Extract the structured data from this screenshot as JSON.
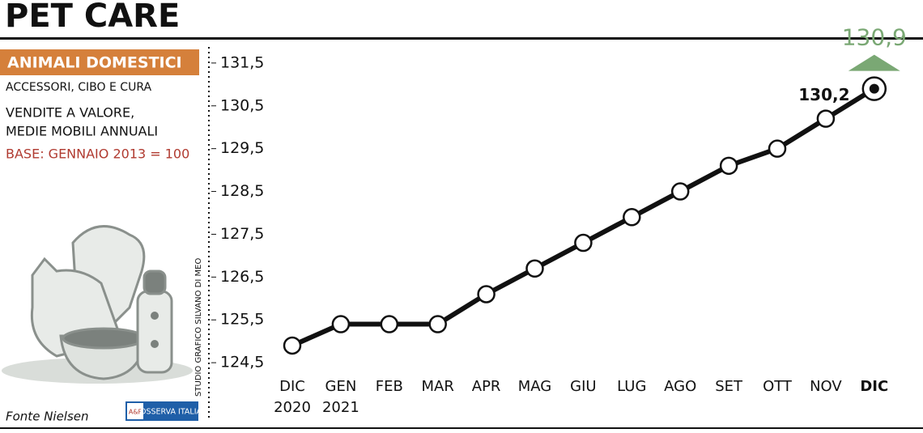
{
  "header": {
    "title": "PET CARE"
  },
  "panel": {
    "tag": "ANIMALI DOMESTICI",
    "subtitle": "ACCESSORI, CIBO E CURA",
    "measure_lines": [
      "VENDITE A VALORE,",
      "MEDIE MOBILI ANNUALI"
    ],
    "base": "BASE: GENNAIO 2013 = 100"
  },
  "credit": "STUDIO GRAFICO SILVANO DI MEO",
  "source": "Fonte Nielsen",
  "logo": {
    "mark": "A&F",
    "text": "OSSERVA ITALIA"
  },
  "chart_data": {
    "type": "line",
    "categories": [
      "DIC",
      "GEN",
      "FEB",
      "MAR",
      "APR",
      "MAG",
      "GIU",
      "LUG",
      "AGO",
      "SET",
      "OTT",
      "NOV",
      "DIC"
    ],
    "year_labels": [
      "2020",
      "2021"
    ],
    "values": [
      124.9,
      125.4,
      125.4,
      125.4,
      126.1,
      126.7,
      127.3,
      127.9,
      128.5,
      129.1,
      129.5,
      130.2,
      130.9
    ],
    "value_labels": [
      null,
      null,
      null,
      null,
      null,
      null,
      null,
      null,
      null,
      null,
      null,
      "130,2",
      "130,9"
    ],
    "color": "#111111",
    "highlight_color": "#7aa874",
    "ylim": [
      124.2,
      131.8
    ],
    "yticks": [
      {
        "value": 124.5,
        "label": "124,5"
      },
      {
        "value": 125.5,
        "label": "125,5"
      },
      {
        "value": 126.5,
        "label": "126,5"
      },
      {
        "value": 127.5,
        "label": "127,5"
      },
      {
        "value": 128.5,
        "label": "128,5"
      },
      {
        "value": 129.5,
        "label": "129,5"
      },
      {
        "value": 130.5,
        "label": "130,5"
      },
      {
        "value": 131.5,
        "label": "131,5"
      }
    ]
  }
}
